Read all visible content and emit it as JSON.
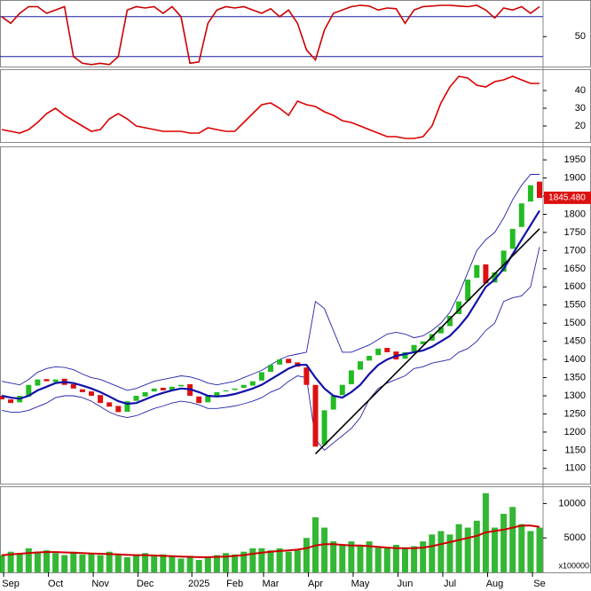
{
  "chart_data": [
    {
      "type": "line",
      "ylim": [
        5,
        105
      ],
      "yticks": [
        50
      ],
      "hlines": [
        20,
        80
      ],
      "hline_color": "#1a1aa0",
      "series": [
        {
          "color": "#cc0000",
          "values": [
            80,
            70,
            85,
            95,
            95,
            85,
            90,
            95,
            20,
            10,
            8,
            10,
            8,
            20,
            90,
            95,
            93,
            95,
            85,
            95,
            80,
            10,
            12,
            70,
            90,
            95,
            93,
            95,
            90,
            85,
            92,
            80,
            90,
            70,
            30,
            15,
            60,
            85,
            90,
            95,
            97,
            96,
            90,
            93,
            92,
            70,
            90,
            95,
            96,
            97,
            97,
            96,
            95,
            97,
            90,
            78,
            93,
            90,
            95,
            85,
            95
          ]
        }
      ]
    },
    {
      "type": "line",
      "ylim": [
        11,
        52
      ],
      "yticks": [
        20,
        30,
        40
      ],
      "series": [
        {
          "color": "#dd0000",
          "values": [
            18,
            17,
            16,
            18,
            22,
            27,
            30,
            26,
            23,
            20,
            17,
            18,
            24,
            27,
            24,
            20,
            19,
            18,
            17,
            17,
            17,
            16,
            16,
            19,
            18,
            17,
            17,
            22,
            27,
            32,
            33,
            30,
            26,
            34,
            32,
            31,
            28,
            26,
            23,
            22,
            20,
            18,
            16,
            14,
            14,
            13,
            13,
            14,
            20,
            33,
            42,
            48,
            47,
            43,
            42,
            45,
            46,
            48,
            46,
            44,
            44
          ]
        }
      ]
    },
    {
      "type": "candlestick",
      "ylim": [
        1058,
        1987
      ],
      "yticks": [
        1100,
        1150,
        1200,
        1250,
        1300,
        1350,
        1400,
        1450,
        1500,
        1550,
        1600,
        1650,
        1700,
        1750,
        1800,
        1850,
        1900,
        1950
      ],
      "up_color": "#22bb22",
      "down_color": "#dd1111",
      "open": [
        1300,
        1290,
        1282,
        1298,
        1328,
        1346,
        1338,
        1347,
        1332,
        1318,
        1312,
        1302,
        1282,
        1272,
        1256,
        1286,
        1298,
        1312,
        1322,
        1314,
        1326,
        1332,
        1298,
        1282,
        1298,
        1312,
        1316,
        1322,
        1328,
        1342,
        1366,
        1386,
        1402,
        1392,
        1378,
        1330,
        1165,
        1262,
        1302,
        1332,
        1372,
        1397,
        1412,
        1432,
        1422,
        1402,
        1422,
        1442,
        1452,
        1472,
        1492,
        1525,
        1562,
        1625,
        1662,
        1612,
        1642,
        1705,
        1765,
        1835,
        1890
      ],
      "close": [
        1290,
        1280,
        1300,
        1330,
        1345,
        1340,
        1345,
        1330,
        1320,
        1310,
        1300,
        1280,
        1270,
        1255,
        1285,
        1300,
        1310,
        1320,
        1315,
        1325,
        1330,
        1300,
        1280,
        1300,
        1310,
        1315,
        1320,
        1330,
        1340,
        1365,
        1385,
        1400,
        1390,
        1380,
        1330,
        1160,
        1260,
        1300,
        1330,
        1370,
        1395,
        1410,
        1430,
        1420,
        1400,
        1420,
        1440,
        1450,
        1470,
        1490,
        1520,
        1560,
        1620,
        1660,
        1610,
        1640,
        1700,
        1760,
        1830,
        1880,
        1845
      ],
      "ma": {
        "color": "#1111aa",
        "values": [
          1300,
          1295,
          1292,
          1300,
          1315,
          1325,
          1335,
          1338,
          1335,
          1328,
          1320,
          1310,
          1298,
          1285,
          1278,
          1280,
          1290,
          1300,
          1308,
          1315,
          1320,
          1318,
          1310,
          1300,
          1298,
          1300,
          1305,
          1312,
          1320,
          1330,
          1345,
          1360,
          1375,
          1385,
          1385,
          1350,
          1320,
          1300,
          1295,
          1310,
          1330,
          1360,
          1385,
          1400,
          1410,
          1415,
          1420,
          1425,
          1435,
          1450,
          1465,
          1490,
          1520,
          1560,
          1600,
          1620,
          1650,
          1690,
          1730,
          1770,
          1810
        ]
      },
      "bands": {
        "color": "#2222aa",
        "upper": [
          1340,
          1335,
          1330,
          1345,
          1365,
          1375,
          1380,
          1378,
          1372,
          1360,
          1350,
          1345,
          1335,
          1325,
          1315,
          1320,
          1330,
          1340,
          1345,
          1350,
          1355,
          1352,
          1345,
          1335,
          1330,
          1335,
          1340,
          1350,
          1360,
          1370,
          1385,
          1400,
          1410,
          1415,
          1420,
          1560,
          1540,
          1480,
          1420,
          1420,
          1430,
          1440,
          1455,
          1470,
          1475,
          1470,
          1460,
          1465,
          1480,
          1500,
          1530,
          1580,
          1640,
          1700,
          1730,
          1750,
          1790,
          1840,
          1880,
          1910,
          1910
        ],
        "lower": [
          1260,
          1255,
          1255,
          1260,
          1270,
          1280,
          1295,
          1300,
          1300,
          1295,
          1285,
          1270,
          1255,
          1245,
          1240,
          1245,
          1255,
          1265,
          1272,
          1280,
          1285,
          1282,
          1275,
          1265,
          1265,
          1268,
          1272,
          1278,
          1285,
          1295,
          1310,
          1320,
          1340,
          1355,
          1350,
          1180,
          1150,
          1170,
          1190,
          1210,
          1240,
          1290,
          1320,
          1335,
          1345,
          1355,
          1375,
          1380,
          1390,
          1395,
          1400,
          1420,
          1430,
          1450,
          1480,
          1500,
          1560,
          1570,
          1575,
          1600,
          1710
        ]
      },
      "trendline": {
        "color": "#000000",
        "start": [
          35,
          1140
        ],
        "end": [
          60,
          1760
        ]
      },
      "last_price": {
        "value": 1845.48,
        "label": "1845.480"
      }
    },
    {
      "type": "bar",
      "ylim": [
        0,
        12500
      ],
      "yticks": [
        5000,
        10000
      ],
      "color": "#11aa11",
      "volume_unit": "x100000",
      "categories": [
        null,
        "Sep",
        null,
        null,
        null,
        null,
        "Oct",
        null,
        null,
        null,
        null,
        "Nov",
        null,
        null,
        null,
        null,
        "Dec",
        null,
        null,
        null,
        null,
        null,
        "2025",
        null,
        null,
        null,
        "Feb",
        null,
        null,
        null,
        "Mar",
        null,
        null,
        null,
        null,
        "Apr",
        null,
        null,
        null,
        null,
        "May",
        null,
        null,
        null,
        null,
        "Jun",
        null,
        null,
        null,
        null,
        "Jul",
        null,
        null,
        null,
        null,
        "Aug",
        null,
        null,
        null,
        null,
        "Se"
      ],
      "values": [
        2500,
        3000,
        2800,
        3500,
        3000,
        3200,
        2800,
        2500,
        3000,
        2600,
        2800,
        2500,
        3000,
        2500,
        2200,
        2600,
        2800,
        2400,
        2600,
        2300,
        2000,
        2400,
        1800,
        2200,
        2500,
        2800,
        2600,
        3000,
        3500,
        3500,
        3200,
        3500,
        3000,
        3200,
        5000,
        8000,
        6500,
        4500,
        4000,
        4500,
        4000,
        4500,
        3800,
        3500,
        4000,
        3500,
        3800,
        4500,
        5500,
        6000,
        5500,
        7000,
        6500,
        7500,
        11500,
        6500,
        8500,
        9500,
        7000,
        6000,
        6500
      ],
      "ma": {
        "color": "#cc0000",
        "values": [
          2500,
          2600,
          2700,
          2800,
          2900,
          2950,
          2950,
          2900,
          2850,
          2800,
          2750,
          2700,
          2650,
          2600,
          2550,
          2500,
          2500,
          2450,
          2400,
          2350,
          2300,
          2250,
          2200,
          2200,
          2250,
          2300,
          2400,
          2500,
          2700,
          2850,
          3000,
          3100,
          3200,
          3300,
          3500,
          3900,
          4100,
          4100,
          4000,
          3900,
          3900,
          3800,
          3700,
          3600,
          3500,
          3500,
          3500,
          3600,
          3800,
          4100,
          4400,
          4700,
          5000,
          5300,
          5800,
          6000,
          6200,
          6500,
          6800,
          6800,
          6600
        ]
      }
    }
  ]
}
